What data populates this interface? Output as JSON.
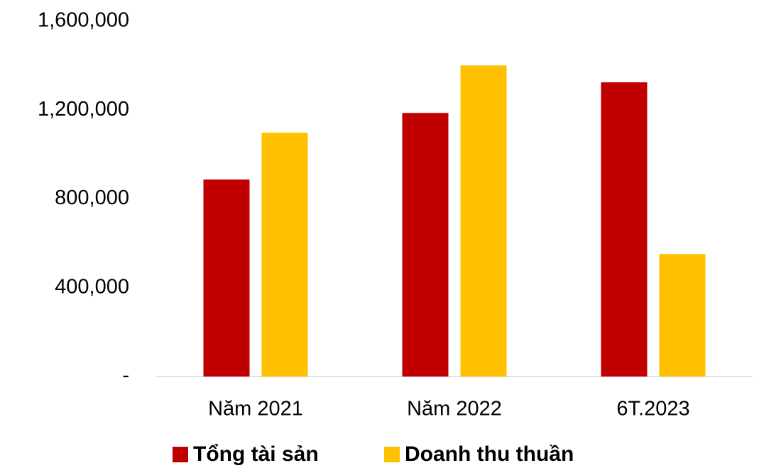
{
  "chart_data": {
    "type": "bar",
    "categories": [
      "Năm 2021",
      "Năm 2022",
      "6T.2023"
    ],
    "series": [
      {
        "name": "Tổng tài sản",
        "color": "#c00000",
        "values": [
          887000,
          1187000,
          1325000
        ]
      },
      {
        "name": "Doanh thu thuần",
        "color": "#ffc000",
        "values": [
          1098000,
          1401000,
          552000
        ]
      }
    ],
    "ylim": [
      0,
      1600000
    ],
    "yticks": [
      {
        "value": 0,
        "label": "-"
      },
      {
        "value": 400000,
        "label": "400,000"
      },
      {
        "value": 800000,
        "label": "800,000"
      },
      {
        "value": 1200000,
        "label": "1,200,000"
      },
      {
        "value": 1600000,
        "label": "1,600,000"
      }
    ],
    "grid": false,
    "legend": "bottom"
  }
}
